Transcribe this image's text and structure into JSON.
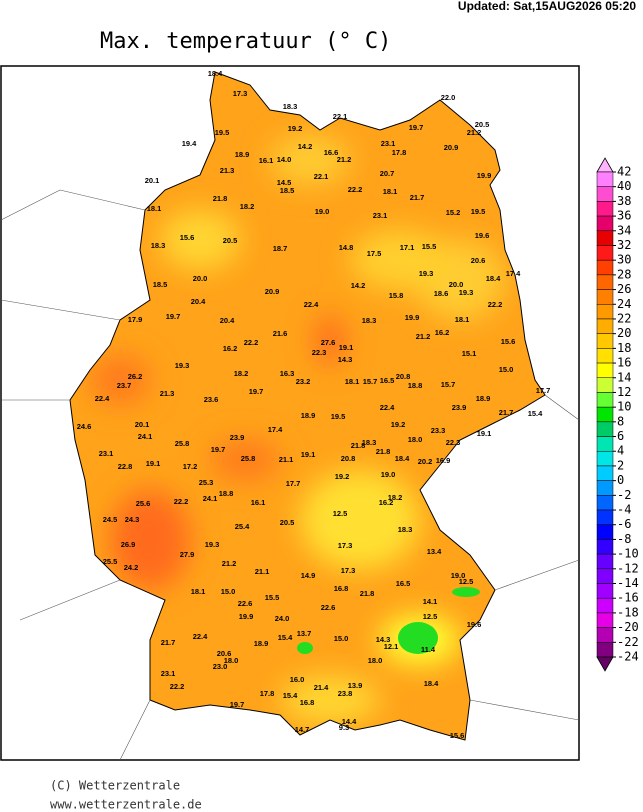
{
  "header": {
    "updated": "Updated: Sat,15AUG2026 05:20",
    "title": "Max. temperatuur (° C)"
  },
  "map": {
    "stations": [
      "18.4",
      "17.3",
      "18.3",
      "22.1",
      "22.0",
      "20.5",
      "19.7",
      "21.2",
      "19.5",
      "19.2",
      "19.4",
      "23.1",
      "14.2",
      "16.6",
      "17.8",
      "20.9",
      "18.9",
      "16.1",
      "14.0",
      "21.2",
      "21.3",
      "20.7",
      "19.9",
      "20.1",
      "14.5",
      "22.1",
      "18.5",
      "22.2",
      "18.1",
      "21.8",
      "18.2",
      "21.7",
      "19.0",
      "23.1",
      "15.2",
      "19.5",
      "18.1",
      "15.6",
      "20.5",
      "18.3",
      "18.7",
      "14.8",
      "17.5",
      "17.1",
      "15.5",
      "19.6",
      "20.6",
      "17.4",
      "18.4",
      "19.3",
      "20.0",
      "18.5",
      "14.2",
      "20.0",
      "18.6",
      "19.3",
      "20.9",
      "15.8",
      "22.4",
      "22.2",
      "20.4",
      "17.9",
      "19.7",
      "20.4",
      "18.3",
      "19.9",
      "18.1",
      "16.2",
      "21.6",
      "21.2",
      "15.6",
      "22.2",
      "27.6",
      "19.1",
      "16.2",
      "22.3",
      "15.1",
      "14.3",
      "19.3",
      "18.2",
      "16.3",
      "20.8",
      "15.0",
      "26.2",
      "23.2",
      "18.1",
      "15.7",
      "16.5",
      "23.7",
      "18.8",
      "15.7",
      "21.3",
      "19.7",
      "17.7",
      "22.4",
      "23.6",
      "18.9",
      "22.4",
      "23.9",
      "21.7",
      "15.4",
      "18.9",
      "19.5",
      "24.6",
      "20.1",
      "17.4",
      "19.2",
      "23.3",
      "19.1",
      "24.1",
      "23.9",
      "21.8",
      "18.3",
      "18.0",
      "22.3",
      "25.8",
      "19.7",
      "21.8",
      "23.1",
      "25.8",
      "21.1",
      "19.1",
      "20.8",
      "18.4",
      "20.2",
      "16.9",
      "22.8",
      "19.1",
      "17.2",
      "19.2",
      "19.0",
      "25.3",
      "17.7",
      "18.8",
      "18.2",
      "24.1",
      "22.2",
      "16.1",
      "16.2",
      "25.6",
      "12.5",
      "24.5",
      "24.3",
      "25.4",
      "20.5",
      "18.3",
      "26.9",
      "19.3",
      "17.3",
      "13.4",
      "27.9",
      "21.2",
      "25.5",
      "24.2",
      "21.1",
      "17.3",
      "14.9",
      "19.0",
      "12.5",
      "16.5",
      "16.8",
      "21.8",
      "18.1",
      "15.0",
      "15.5",
      "14.1",
      "22.6",
      "22.6",
      "19.9",
      "24.0",
      "12.5",
      "19.6",
      "22.4",
      "13.7",
      "15.4",
      "15.0",
      "14.3",
      "21.7",
      "18.9",
      "12.1",
      "11.4",
      "20.6",
      "23.0",
      "18.0",
      "16.0",
      "18.0",
      "23.1",
      "18.4",
      "22.2",
      "21.4",
      "13.9",
      "23.8",
      "17.8",
      "15.4",
      "16.8",
      "19.7",
      "14.4",
      "14.7",
      "15.6",
      "9.3"
    ]
  },
  "colorbar": {
    "ticks": [
      42,
      40,
      38,
      36,
      34,
      32,
      30,
      28,
      26,
      24,
      22,
      20,
      18,
      16,
      14,
      12,
      10,
      8,
      6,
      4,
      2,
      0,
      -2,
      -4,
      -6,
      -8,
      -10,
      -12,
      -14,
      -16,
      -18,
      -20,
      -22,
      -24
    ],
    "colors": [
      "#ffb3ff",
      "#ff80ff",
      "#ff4dd2",
      "#ff1a8c",
      "#e6006b",
      "#e60000",
      "#ff1a1a",
      "#ff4000",
      "#ff6600",
      "#ff8000",
      "#ff9900",
      "#ffad00",
      "#ffc800",
      "#ffe000",
      "#ffff00",
      "#ccff33",
      "#66ff33",
      "#00e600",
      "#00cc66",
      "#00e6b3",
      "#00e6e6",
      "#00ccff",
      "#0099ff",
      "#0066ff",
      "#0033ff",
      "#0000ff",
      "#3300ff",
      "#6600ff",
      "#8000ff",
      "#a000ff",
      "#cc00ff",
      "#e600e6",
      "#b300b3",
      "#800080",
      "#660066"
    ]
  },
  "footer": {
    "copyright": "(C) Wetterzentrale",
    "url": "www.wetterzentrale.de"
  }
}
